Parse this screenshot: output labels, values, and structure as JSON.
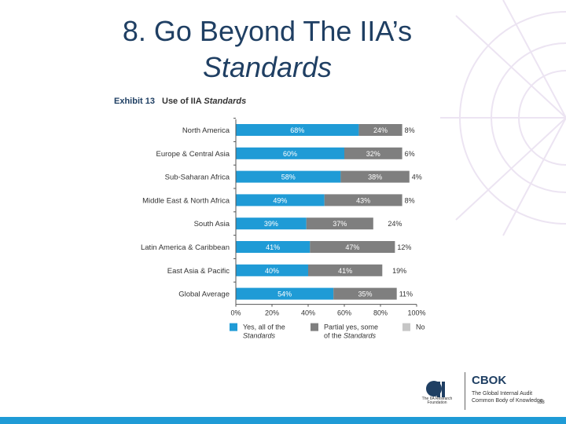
{
  "slide": {
    "title_line1": "8. Go Beyond The IIA’s",
    "title_line2": "Standards",
    "page_number": "38"
  },
  "logo": {
    "iia_text": "The IIA Research Foundation",
    "cbok": "CBOK",
    "cbok_line1": "The Global Internal Audit",
    "cbok_line2": "Common Body of Knowledge"
  },
  "colors": {
    "title": "#1f3f63",
    "yes": "#1f9bd6",
    "partial": "#7f7f7f",
    "no": "#c6c6c6",
    "accent_bar": "#1f9bd6"
  },
  "chart_data": {
    "type": "bar",
    "orientation": "horizontal",
    "stacked": true,
    "title_prefix": "Exhibit 13",
    "title": "Use of IIA Standards",
    "title_plain": "Use of IIA ",
    "title_italic": "Standards",
    "categories": [
      "North America",
      "Europe & Central Asia",
      "Sub-Saharan Africa",
      "Middle East & North Africa",
      "South Asia",
      "Latin America & Caribbean",
      "East Asia & Pacific",
      "Global Average"
    ],
    "series": [
      {
        "name": "Yes, all of the Standards",
        "legend_line1": "Yes, all of the",
        "legend_line2": "Standards",
        "values": [
          68,
          60,
          58,
          49,
          39,
          41,
          40,
          54
        ]
      },
      {
        "name": "Partial yes, some of the Standards",
        "legend_line1": "Partial yes, some",
        "legend_line2": "of the Standards",
        "values": [
          24,
          32,
          38,
          43,
          37,
          47,
          41,
          35
        ]
      },
      {
        "name": "No",
        "legend_line1": "No",
        "legend_line2": "",
        "values": [
          8,
          6,
          4,
          8,
          24,
          12,
          19,
          11
        ]
      }
    ],
    "xticks": [
      "0%",
      "20%",
      "40%",
      "60%",
      "80%",
      "100%"
    ],
    "xlim": [
      0,
      100
    ],
    "grid": false,
    "legend_position": "bottom"
  }
}
